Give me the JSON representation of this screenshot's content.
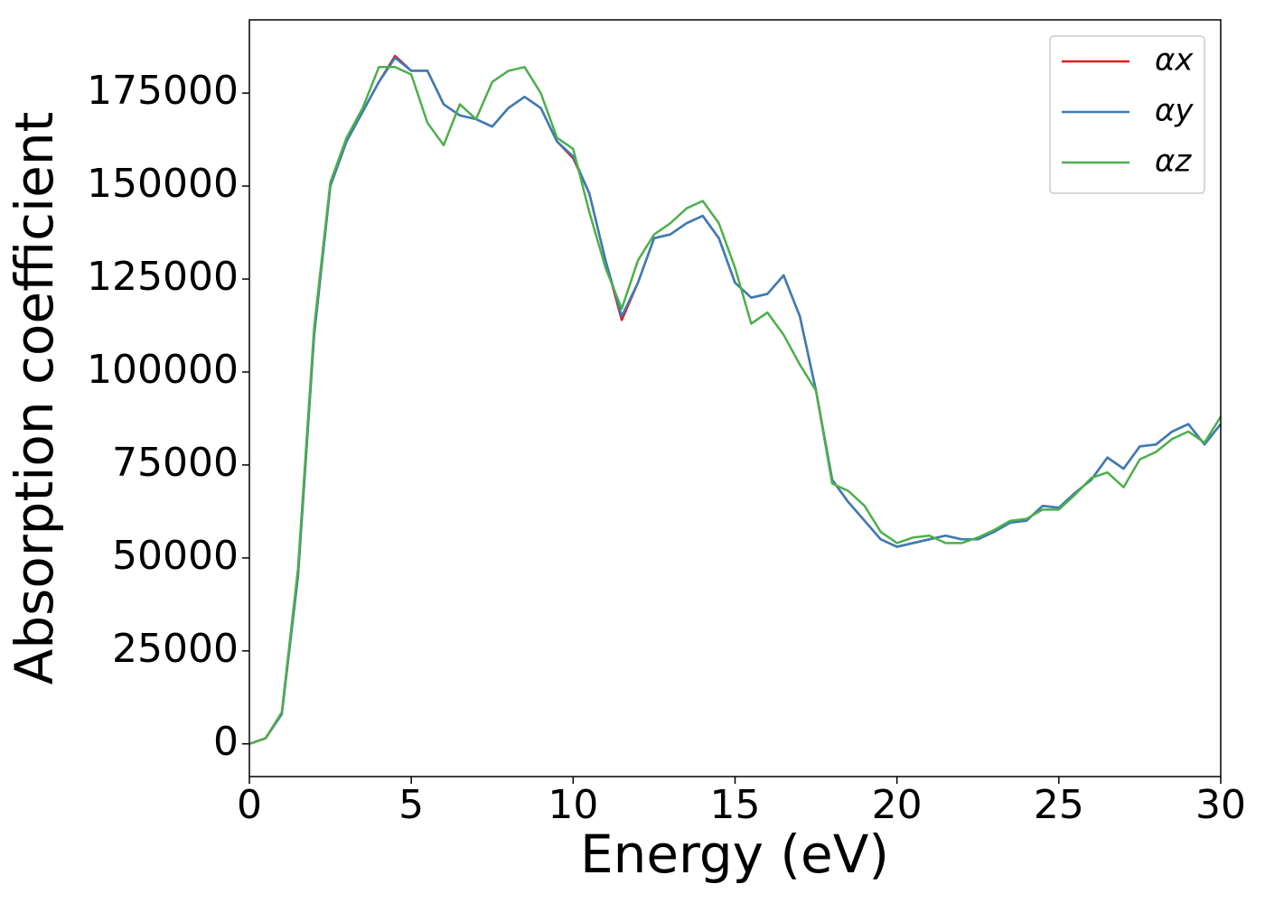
{
  "chart_data": {
    "type": "line",
    "xlabel": "Energy (eV)",
    "ylabel": "Absorption coefficient",
    "x": [
      0,
      0.5,
      1,
      1.5,
      2,
      2.5,
      3,
      3.5,
      4,
      4.5,
      5,
      5.5,
      6,
      6.5,
      7,
      7.5,
      8,
      8.5,
      9,
      9.5,
      10,
      10.5,
      11,
      11.5,
      12,
      12.5,
      13,
      13.5,
      14,
      14.5,
      15,
      15.5,
      16,
      16.5,
      17,
      17.5,
      18,
      18.5,
      19,
      19.5,
      20,
      20.5,
      21,
      21.5,
      22,
      22.5,
      23,
      23.5,
      24,
      24.5,
      25,
      25.5,
      26,
      26.5,
      27,
      27.5,
      28,
      28.5,
      29,
      29.5,
      30
    ],
    "series": [
      {
        "name": "αx",
        "color": "#e41a1c",
        "values": [
          0,
          1500,
          8000,
          45000,
          110000,
          150000,
          162000,
          170000,
          178000,
          185000,
          181000,
          181000,
          172000,
          169000,
          168000,
          166000,
          171000,
          174000,
          171000,
          162000,
          157500,
          148000,
          130000,
          114000,
          124000,
          136000,
          137000,
          140000,
          142000,
          136000,
          124000,
          120000,
          121000,
          126000,
          115000,
          95000,
          71000,
          65000,
          60000,
          55000,
          53000,
          54000,
          55000,
          56000,
          55000,
          55000,
          57000,
          59500,
          60000,
          64000,
          63500,
          67500,
          71000,
          77000,
          74000,
          80000,
          80500,
          84000,
          86000,
          80500,
          86000
        ]
      },
      {
        "name": "αy",
        "color": "#377eb8",
        "values": [
          0,
          1500,
          8000,
          45000,
          110000,
          150000,
          162000,
          170000,
          178000,
          184500,
          181000,
          181000,
          172000,
          169000,
          168000,
          166000,
          171000,
          174000,
          171000,
          162000,
          158000,
          148000,
          130000,
          115000,
          124000,
          136000,
          137000,
          140000,
          142000,
          136000,
          124000,
          120000,
          121000,
          126000,
          115000,
          95000,
          71000,
          65000,
          60000,
          55000,
          53000,
          54000,
          55000,
          56000,
          55000,
          55000,
          57000,
          59500,
          60000,
          64000,
          63500,
          67500,
          71000,
          77000,
          74000,
          80000,
          80500,
          84000,
          86000,
          80500,
          86000
        ]
      },
      {
        "name": "αz",
        "color": "#4daf4a",
        "values": [
          0,
          1500,
          8500,
          47000,
          112000,
          151000,
          163000,
          171000,
          182000,
          182000,
          180000,
          167000,
          161000,
          172000,
          168000,
          178000,
          181000,
          182000,
          175000,
          163000,
          160000,
          143000,
          128000,
          117000,
          130000,
          137000,
          140000,
          144000,
          146000,
          140000,
          128000,
          113000,
          116000,
          110000,
          102000,
          95000,
          70000,
          68000,
          64000,
          57000,
          54000,
          55500,
          56000,
          54000,
          54000,
          55500,
          57500,
          60000,
          60500,
          63000,
          63000,
          67000,
          71500,
          73000,
          69000,
          76500,
          78500,
          82000,
          84000,
          81000,
          88000
        ]
      }
    ],
    "xlim": [
      0,
      30
    ],
    "xticks": [
      0,
      5,
      10,
      15,
      20,
      25,
      30
    ],
    "ylim": [
      -8800,
      194700
    ],
    "yticks": [
      0,
      25000,
      50000,
      75000,
      100000,
      125000,
      150000,
      175000
    ],
    "legend": "upper right"
  }
}
